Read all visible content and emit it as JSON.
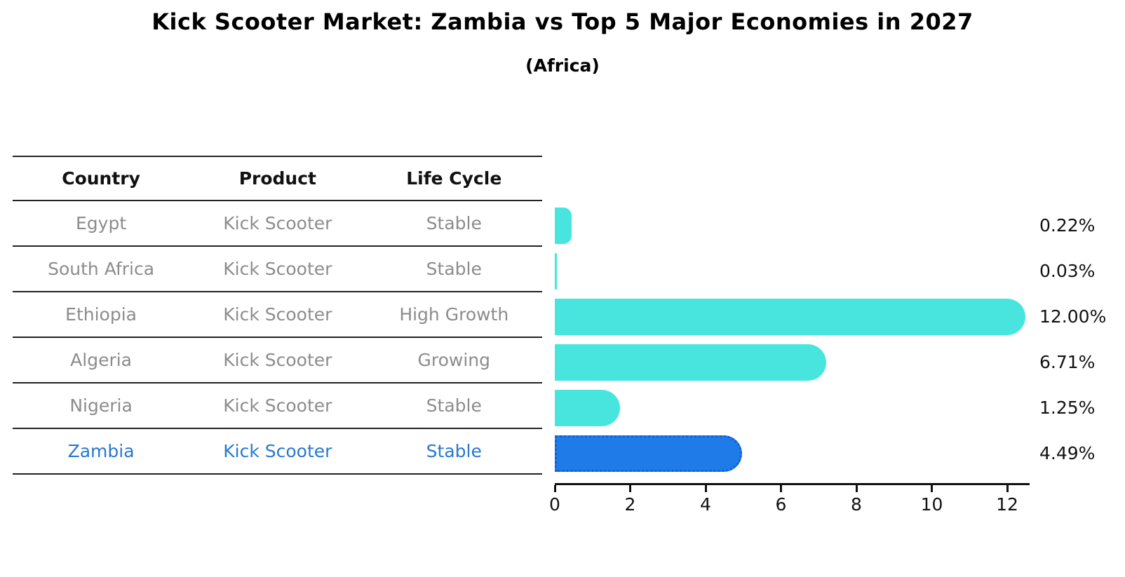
{
  "title": "Kick Scooter Market: Zambia vs Top 5 Major Economies in 2027",
  "subtitle": "(Africa)",
  "colors": {
    "bar": "#48E5DE",
    "highlight_bar": "#1E7BE8",
    "highlight_border": "#0F62D0",
    "highlight_text": "#2878CF",
    "row_text": "#8C8C8C",
    "header_text": "#111111",
    "axis": "#111111",
    "table_line": "#222222"
  },
  "table": {
    "columns": [
      "Country",
      "Product",
      "Life Cycle"
    ]
  },
  "chart_data": {
    "type": "bar",
    "orientation": "horizontal",
    "title": "Kick Scooter Market: Zambia vs Top 5 Major Economies in 2027",
    "subtitle": "(Africa)",
    "xlabel": "",
    "ylabel": "",
    "xlim": [
      0,
      12.6
    ],
    "xticks": [
      0,
      2,
      4,
      6,
      8,
      10,
      12
    ],
    "grid": false,
    "legend": false,
    "categories": [
      "Egypt",
      "South Africa",
      "Ethiopia",
      "Algeria",
      "Nigeria",
      "Zambia"
    ],
    "values": [
      0.22,
      0.03,
      12.0,
      6.71,
      1.25,
      4.49
    ],
    "value_labels": [
      "0.22%",
      "0.03%",
      "12.00%",
      "6.71%",
      "1.25%",
      "4.49%"
    ],
    "highlight_index": 5,
    "rows": [
      {
        "country": "Egypt",
        "product": "Kick Scooter",
        "life_cycle": "Stable",
        "value": 0.22,
        "label": "0.22%",
        "highlight": false
      },
      {
        "country": "South Africa",
        "product": "Kick Scooter",
        "life_cycle": "Stable",
        "value": 0.03,
        "label": "0.03%",
        "highlight": false
      },
      {
        "country": "Ethiopia",
        "product": "Kick Scooter",
        "life_cycle": "High Growth",
        "value": 12.0,
        "label": "12.00%",
        "highlight": false
      },
      {
        "country": "Algeria",
        "product": "Kick Scooter",
        "life_cycle": "Growing",
        "value": 6.71,
        "label": "6.71%",
        "highlight": false
      },
      {
        "country": "Nigeria",
        "product": "Kick Scooter",
        "life_cycle": "Stable",
        "value": 1.25,
        "label": "1.25%",
        "highlight": false
      },
      {
        "country": "Zambia",
        "product": "Kick Scooter",
        "life_cycle": "Stable",
        "value": 4.49,
        "label": "4.49%",
        "highlight": true
      }
    ]
  }
}
